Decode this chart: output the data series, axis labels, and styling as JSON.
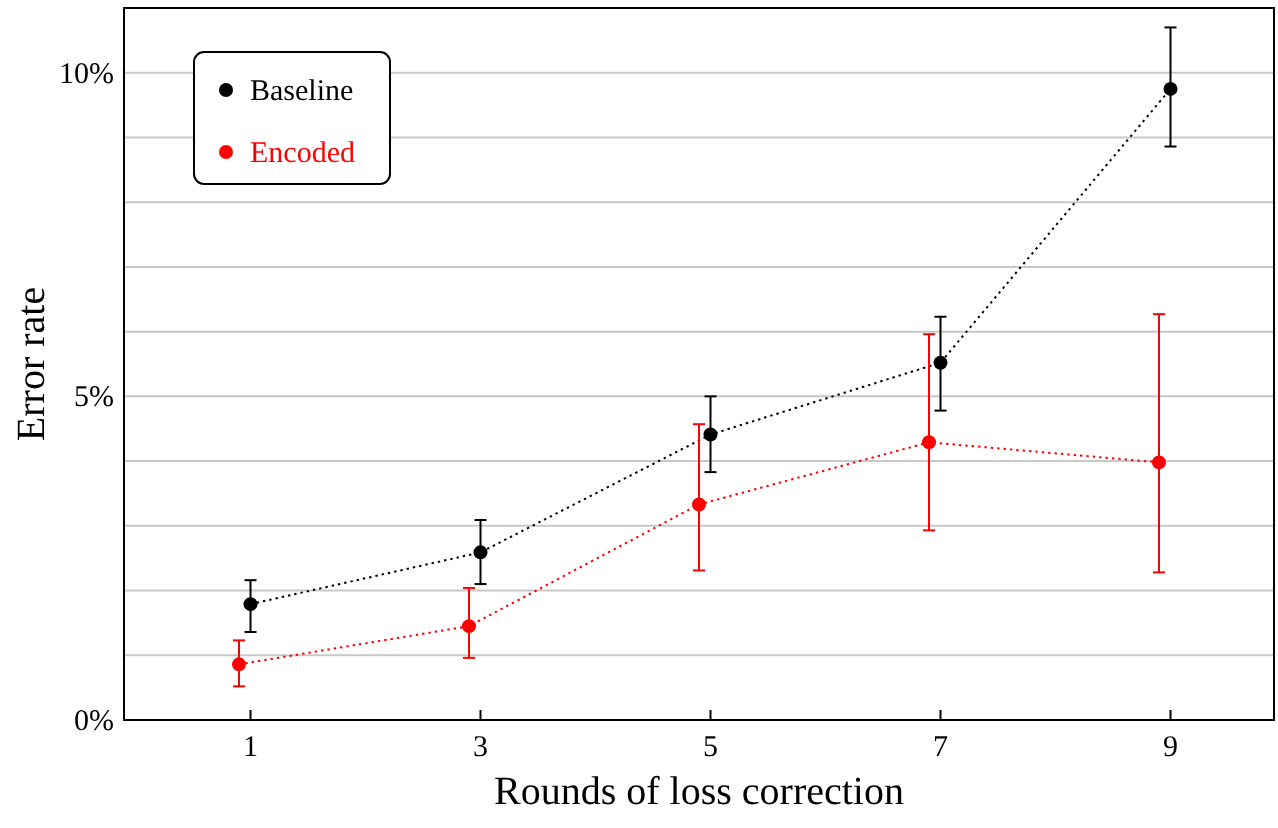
{
  "chart_data": {
    "type": "line",
    "xlabel": "Rounds of loss correction",
    "ylabel": "Error rate",
    "xlim": [
      -0.1,
      9.9
    ],
    "xticks": [
      1,
      3,
      5,
      7,
      9
    ],
    "ylim": [
      0,
      11
    ],
    "yticks": [
      {
        "value": 0,
        "label": "0%"
      },
      {
        "value": 1,
        "label": null
      },
      {
        "value": 2,
        "label": null
      },
      {
        "value": 3,
        "label": null
      },
      {
        "value": 4,
        "label": null
      },
      {
        "value": 5,
        "label": "5%"
      },
      {
        "value": 6,
        "label": null
      },
      {
        "value": 7,
        "label": null
      },
      {
        "value": 8,
        "label": null
      },
      {
        "value": 9,
        "label": null
      },
      {
        "value": 10,
        "label": "10%"
      },
      {
        "value": 11,
        "label": null
      }
    ],
    "grid": "y",
    "legend": "top left",
    "marker": "circle",
    "line_style": "dotted",
    "series": [
      {
        "name": "Baseline",
        "color": "#000000",
        "x": [
          1,
          3,
          5,
          7,
          9
        ],
        "values": [
          1.79,
          2.59,
          4.41,
          5.52,
          9.75
        ],
        "errors": [
          [
            1.36,
            2.16
          ],
          [
            2.1,
            3.09
          ],
          [
            3.83,
            5.0
          ],
          [
            4.78,
            6.23
          ],
          [
            8.86,
            10.7
          ]
        ]
      },
      {
        "name": "Encoded",
        "color": "#ff0000",
        "x": [
          0.9,
          2.9,
          4.9,
          6.9,
          8.9
        ],
        "values": [
          0.86,
          1.45,
          3.33,
          4.29,
          3.98
        ],
        "errors": [
          [
            0.52,
            1.23
          ],
          [
            0.96,
            2.04
          ],
          [
            2.31,
            4.57
          ],
          [
            2.93,
            5.96
          ],
          [
            2.28,
            6.27
          ]
        ]
      }
    ]
  }
}
